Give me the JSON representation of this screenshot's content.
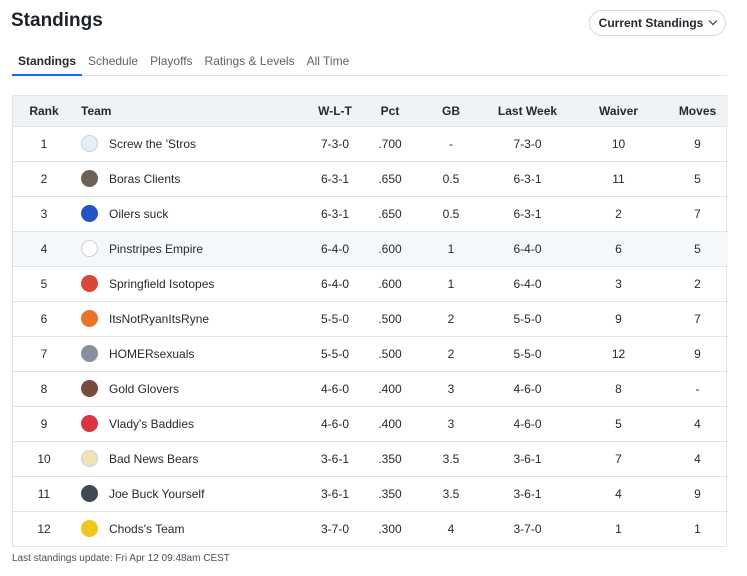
{
  "header": {
    "title": "Standings",
    "view_select": "Current Standings"
  },
  "tabs": [
    "Standings",
    "Schedule",
    "Playoffs",
    "Ratings & Levels",
    "All Time"
  ],
  "columns": [
    "Rank",
    "Team",
    "W-L-T",
    "Pct",
    "GB",
    "Last Week",
    "Waiver",
    "Moves"
  ],
  "rows": [
    {
      "rank": "1",
      "team": "Screw the 'Stros",
      "wlt": "7-3-0",
      "pct": ".700",
      "gb": "-",
      "last_week": "7-3-0",
      "waiver": "10",
      "moves": "9",
      "logo_color": "#e8eef8",
      "logo_icon": "dodgers-logo-icon"
    },
    {
      "rank": "2",
      "team": "Boras Clients",
      "wlt": "6-3-1",
      "pct": ".650",
      "gb": "0.5",
      "last_week": "6-3-1",
      "waiver": "11",
      "moves": "5",
      "logo_color": "#6b6158",
      "logo_icon": "boras-photo-icon"
    },
    {
      "rank": "3",
      "team": "Oilers suck",
      "wlt": "6-3-1",
      "pct": ".650",
      "gb": "0.5",
      "last_week": "6-3-1",
      "waiver": "2",
      "moves": "7",
      "logo_color": "#2453c4",
      "logo_icon": "oilers-logo-icon"
    },
    {
      "rank": "4",
      "team": "Pinstripes Empire",
      "wlt": "6-4-0",
      "pct": ".600",
      "gb": "1",
      "last_week": "6-4-0",
      "waiver": "6",
      "moves": "5",
      "logo_color": "#ffffff",
      "logo_icon": "yankees-logo-icon"
    },
    {
      "rank": "5",
      "team": "Springfield Isotopes",
      "wlt": "6-4-0",
      "pct": ".600",
      "gb": "1",
      "last_week": "6-4-0",
      "waiver": "3",
      "moves": "2",
      "logo_color": "#d9463a",
      "logo_icon": "isotopes-logo-icon"
    },
    {
      "rank": "6",
      "team": "ItsNotRyanItsRyne",
      "wlt": "5-5-0",
      "pct": ".500",
      "gb": "2",
      "last_week": "5-5-0",
      "waiver": "9",
      "moves": "7",
      "logo_color": "#e8742c",
      "logo_icon": "ryne-logo-icon"
    },
    {
      "rank": "7",
      "team": "HOMERsexuals",
      "wlt": "5-5-0",
      "pct": ".500",
      "gb": "2",
      "last_week": "5-5-0",
      "waiver": "12",
      "moves": "9",
      "logo_color": "#8a8fa0",
      "logo_icon": "homer-logo-icon"
    },
    {
      "rank": "8",
      "team": "Gold Glovers",
      "wlt": "4-6-0",
      "pct": ".400",
      "gb": "3",
      "last_week": "4-6-0",
      "waiver": "8",
      "moves": "-",
      "logo_color": "#7a4a3c",
      "logo_icon": "glove-logo-icon"
    },
    {
      "rank": "9",
      "team": "Vlady's Baddies",
      "wlt": "4-6-0",
      "pct": ".400",
      "gb": "3",
      "last_week": "4-6-0",
      "waiver": "5",
      "moves": "4",
      "logo_color": "#d93344",
      "logo_icon": "vlady-logo-icon"
    },
    {
      "rank": "10",
      "team": "Bad News Bears",
      "wlt": "3-6-1",
      "pct": ".350",
      "gb": "3.5",
      "last_week": "3-6-1",
      "waiver": "7",
      "moves": "4",
      "logo_color": "#f1e3b5",
      "logo_icon": "bear-logo-icon"
    },
    {
      "rank": "11",
      "team": "Joe Buck Yourself",
      "wlt": "3-6-1",
      "pct": ".350",
      "gb": "3.5",
      "last_week": "3-6-1",
      "waiver": "4",
      "moves": "9",
      "logo_color": "#3e4a55",
      "logo_icon": "buck-logo-icon"
    },
    {
      "rank": "12",
      "team": "Chods's Team",
      "wlt": "3-7-0",
      "pct": ".300",
      "gb": "4",
      "last_week": "3-7-0",
      "waiver": "1",
      "moves": "1",
      "logo_color": "#f0c51c",
      "logo_icon": "chods-logo-icon"
    }
  ],
  "footer": "Last standings update: Fri Apr 12 09:48am CEST"
}
